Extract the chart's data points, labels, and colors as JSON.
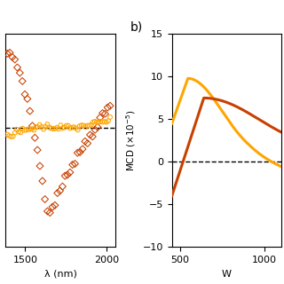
{
  "panel_b": {
    "xlabel": "W",
    "ylabel": "MCD (x10$^{-5}$)",
    "xlim": [
      450,
      1100
    ],
    "ylim": [
      -10,
      15
    ],
    "yticks": [
      -10,
      -5,
      0,
      5,
      10,
      15
    ],
    "xticks": [
      500,
      1000
    ],
    "color_orange": "#FFA500",
    "color_red_orange": "#C84000",
    "bg_color": "#ffffff"
  },
  "panel_a": {
    "xlabel": "λ (nm)",
    "xlim": [
      1380,
      2050
    ],
    "ylim": [
      -0.75,
      0.45
    ],
    "xticks": [
      1500,
      2000
    ],
    "color_orange": "#FFA500",
    "color_red_orange": "#C84000"
  }
}
